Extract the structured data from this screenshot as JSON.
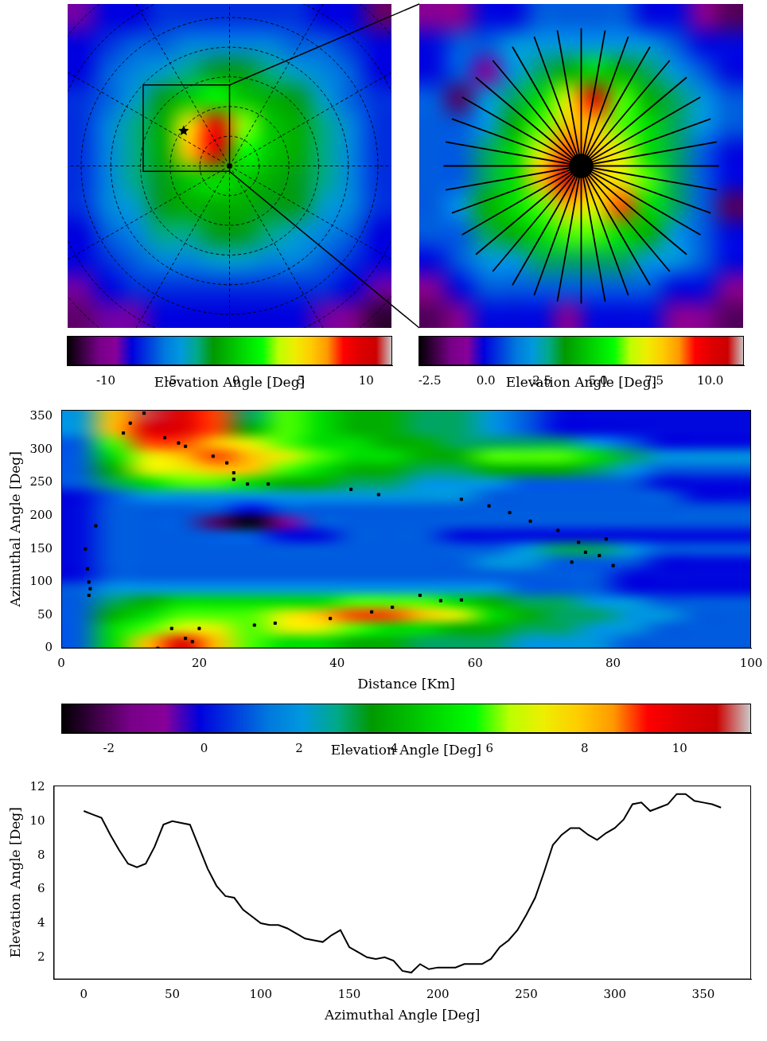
{
  "chart_data": [
    {
      "type": "heatmap",
      "tick_labels": false,
      "cells": [
        [
          -9,
          -8,
          -8,
          -7,
          -7,
          -7,
          -7,
          -7,
          -7,
          -8,
          -8,
          -11
        ],
        [
          -8,
          -7,
          -6,
          -6,
          -5,
          -5,
          -5,
          -5,
          -6,
          -6,
          -7,
          -8
        ],
        [
          -8,
          -6,
          -5,
          -4,
          -3,
          -2,
          -2,
          -3,
          -4,
          -5,
          -6,
          -8
        ],
        [
          -7,
          -6,
          -4,
          -2,
          0,
          2,
          0,
          -1,
          -2,
          -4,
          -6,
          -7
        ],
        [
          -7,
          -5,
          -3,
          -1,
          5,
          9,
          3,
          0,
          -1,
          -3,
          -5,
          -7
        ],
        [
          -7,
          -5,
          -3,
          -1,
          6,
          10,
          2,
          0,
          -1,
          -3,
          -5,
          -7
        ],
        [
          -7,
          -5,
          -3,
          -2,
          0,
          1,
          0,
          -1,
          -2,
          -3,
          -5,
          -7
        ],
        [
          -7,
          -5,
          -4,
          -2,
          -1,
          -1,
          -1,
          -2,
          -2,
          -4,
          -5,
          -7
        ],
        [
          -8,
          -6,
          -5,
          -3,
          -3,
          -2,
          -2,
          -3,
          -4,
          -5,
          -6,
          -8
        ],
        [
          -8,
          -7,
          -6,
          -5,
          -5,
          -4,
          -4,
          -5,
          -5,
          -6,
          -7,
          -8
        ],
        [
          -9,
          -8,
          -7,
          -7,
          -7,
          -7,
          -7,
          -7,
          -7,
          -7,
          -8,
          -9
        ],
        [
          -11,
          -9,
          -9,
          -8,
          -8,
          -8,
          -8,
          -8,
          -8,
          -9,
          -10,
          -12
        ]
      ],
      "color_range": [
        -13,
        12
      ],
      "color_ticks": [
        -10,
        -5,
        0,
        5,
        10
      ],
      "color_label": "Elevation Angle [Deg]"
    },
    {
      "type": "heatmap",
      "tick_labels": false,
      "cells": [
        [
          -1,
          -1,
          0,
          0,
          1,
          1,
          1,
          1,
          0,
          0,
          -1,
          -2
        ],
        [
          0,
          1,
          1,
          2,
          2,
          2,
          2,
          2,
          2,
          1,
          0,
          0
        ],
        [
          0,
          1,
          -1,
          2,
          3,
          4,
          5,
          4,
          3,
          2,
          1,
          0
        ],
        [
          1,
          -2,
          2,
          3,
          5,
          7,
          10,
          6,
          4,
          3,
          2,
          1
        ],
        [
          1,
          1,
          2,
          4,
          6,
          8,
          8,
          6,
          5,
          3,
          2,
          1
        ],
        [
          1,
          1,
          3,
          5,
          7,
          9,
          8,
          7,
          5,
          3,
          1,
          0
        ],
        [
          1,
          1,
          3,
          5,
          8,
          10,
          8,
          7,
          6,
          3,
          1,
          0
        ],
        [
          1,
          2,
          4,
          5,
          6,
          8,
          7,
          9,
          5,
          3,
          1,
          -2
        ],
        [
          1,
          1,
          3,
          4,
          5,
          6,
          6,
          5,
          4,
          2,
          1,
          0
        ],
        [
          0,
          1,
          2,
          2,
          3,
          3,
          3,
          3,
          2,
          2,
          1,
          0
        ],
        [
          -1,
          0,
          1,
          1,
          1,
          1,
          1,
          1,
          1,
          0,
          0,
          -1
        ],
        [
          -2,
          -1,
          0,
          0,
          0,
          -1,
          0,
          0,
          0,
          -1,
          -1,
          -2
        ]
      ],
      "color_range": [
        -3,
        11.5
      ],
      "color_ticks": [
        -2.5,
        {
          "value": 0,
          "label": "0.0"
        },
        2.5,
        {
          "value": 5,
          "label": "5.0"
        },
        7.5,
        {
          "value": 10,
          "label": "10.0"
        }
      ],
      "color_label": "Elevation Angle [Deg]"
    },
    {
      "type": "heatmap",
      "x_label": "Distance [Km]",
      "y_label": "Azimuthal Angle [Deg]",
      "xlim": [
        0,
        100
      ],
      "xticks": [
        0,
        20,
        40,
        60,
        80,
        100
      ],
      "ylim": [
        0,
        360
      ],
      "yticks": [
        0,
        50,
        100,
        150,
        200,
        250,
        300,
        350
      ],
      "grid": false,
      "cells": [
        [
          1,
          5,
          8,
          10,
          8,
          6,
          5,
          5,
          4,
          4,
          3,
          3,
          3,
          2,
          2,
          2,
          1,
          1,
          1,
          1
        ],
        [
          1,
          5,
          6,
          7,
          7,
          6,
          7,
          7,
          6,
          5,
          5,
          4,
          4,
          3,
          3,
          2,
          2,
          1,
          1,
          1
        ],
        [
          1,
          4,
          5,
          6,
          6,
          6,
          7,
          8,
          9,
          9,
          8,
          7,
          5,
          4,
          3,
          3,
          2,
          2,
          1,
          1
        ],
        [
          1,
          3,
          4,
          5,
          5,
          5,
          5,
          5,
          6,
          6,
          6,
          5,
          4,
          3,
          3,
          2,
          2,
          1,
          1,
          1
        ],
        [
          1,
          2,
          2,
          2,
          2,
          2,
          2,
          2,
          2,
          2,
          2,
          2,
          2,
          1,
          1,
          1,
          0,
          0,
          0,
          0
        ],
        [
          0,
          1,
          1,
          1,
          1,
          1,
          1,
          1,
          1,
          1,
          1,
          1,
          1,
          1,
          1,
          1,
          0,
          0,
          0,
          0
        ],
        [
          0,
          1,
          1,
          1,
          1,
          1,
          1,
          1,
          1,
          1,
          1,
          1,
          2,
          2,
          1,
          1,
          1,
          0,
          0,
          0
        ],
        [
          0,
          1,
          1,
          1,
          1,
          1,
          1,
          1,
          1,
          1,
          1,
          1,
          1,
          2,
          3,
          3,
          2,
          1,
          1,
          1
        ],
        [
          0,
          1,
          1,
          1,
          1,
          1,
          0,
          0,
          1,
          1,
          1,
          0,
          0,
          0,
          0,
          0,
          0,
          0,
          0,
          0
        ],
        [
          0,
          1,
          1,
          1,
          -2,
          -3,
          -1,
          1,
          1,
          1,
          1,
          1,
          1,
          1,
          1,
          1,
          1,
          1,
          1,
          1
        ],
        [
          0,
          1,
          1,
          1,
          1,
          0,
          1,
          1,
          1,
          1,
          1,
          1,
          1,
          1,
          1,
          1,
          1,
          1,
          1,
          1
        ],
        [
          0,
          1,
          2,
          2,
          2,
          2,
          2,
          2,
          2,
          2,
          2,
          2,
          1,
          1,
          1,
          1,
          1,
          1,
          0,
          0
        ],
        [
          1,
          3,
          5,
          6,
          6,
          5,
          4,
          4,
          3,
          3,
          2,
          2,
          2,
          1,
          1,
          1,
          1,
          0,
          0,
          0
        ],
        [
          1,
          4,
          7,
          7,
          8,
          8,
          6,
          5,
          4,
          4,
          3,
          3,
          4,
          4,
          4,
          3,
          2,
          1,
          1,
          1
        ],
        [
          1,
          5,
          7,
          8,
          9,
          8,
          7,
          6,
          5,
          5,
          4,
          4,
          6,
          6,
          6,
          5,
          3,
          2,
          2,
          2
        ],
        [
          1,
          6,
          9,
          9,
          8,
          7,
          6,
          5,
          5,
          4,
          4,
          3,
          3,
          3,
          3,
          2,
          1,
          0,
          0,
          0
        ],
        [
          2,
          8,
          10,
          10,
          9,
          4,
          6,
          5,
          4,
          4,
          3,
          3,
          2,
          1,
          0,
          0,
          0,
          0,
          0,
          0
        ],
        [
          2,
          8,
          11,
          10,
          9,
          3,
          6,
          5,
          4,
          4,
          3,
          3,
          2,
          1,
          0,
          0,
          0,
          0,
          0,
          0
        ]
      ],
      "color_range": [
        -3,
        11.5
      ],
      "color_ticks": [
        -2,
        0,
        2,
        4,
        6,
        8,
        10
      ],
      "color_label": "Elevation Angle [Deg]",
      "series": [
        {
          "type": "scatter",
          "marker": "square",
          "color": "#000000",
          "x": [
            3.5,
            3.8,
            4,
            4.2,
            4,
            5,
            9,
            10,
            12,
            15,
            17,
            18,
            22,
            24,
            25,
            25,
            27,
            30,
            16,
            18,
            19,
            20,
            14,
            28,
            31,
            39,
            45,
            48,
            52,
            55,
            58,
            42,
            46,
            58,
            62,
            65,
            68,
            72,
            75,
            78,
            80,
            74,
            76,
            79
          ],
          "values": [
            150,
            120,
            100,
            90,
            80,
            185,
            325,
            340,
            355,
            318,
            310,
            305,
            290,
            280,
            265,
            255,
            248,
            248,
            30,
            15,
            10,
            30,
            0,
            35,
            38,
            45,
            55,
            62,
            80,
            72,
            73,
            240,
            232,
            225,
            215,
            205,
            192,
            178,
            160,
            140,
            125,
            130,
            145,
            165
          ]
        }
      ]
    },
    {
      "type": "line",
      "x_label": "Azimuthal Angle [Deg]",
      "y_label": "Elevation Angle [Deg]",
      "xlim": [
        -17,
        377
      ],
      "xticks": [
        0,
        50,
        100,
        150,
        200,
        250,
        300,
        350
      ],
      "ylim": [
        0.7,
        12.1
      ],
      "yticks": [
        2,
        4,
        6,
        8,
        10,
        12
      ],
      "grid": false,
      "color": "#000000",
      "x": [
        0,
        5,
        10,
        15,
        20,
        25,
        30,
        35,
        40,
        45,
        50,
        55,
        60,
        65,
        70,
        75,
        80,
        85,
        90,
        95,
        100,
        105,
        110,
        115,
        120,
        125,
        130,
        135,
        140,
        145,
        150,
        155,
        160,
        165,
        170,
        175,
        180,
        185,
        190,
        195,
        200,
        205,
        210,
        215,
        220,
        225,
        230,
        235,
        240,
        245,
        250,
        255,
        260,
        265,
        270,
        275,
        280,
        285,
        290,
        295,
        300,
        305,
        310,
        315,
        320,
        325,
        330,
        335,
        340,
        345,
        350,
        355,
        360
      ],
      "values": [
        10.6,
        10.4,
        10.2,
        9.2,
        8.3,
        7.5,
        7.3,
        7.5,
        8.5,
        9.8,
        10.0,
        9.9,
        9.8,
        8.5,
        7.2,
        6.2,
        5.6,
        5.5,
        4.8,
        4.4,
        4.0,
        3.9,
        3.9,
        3.7,
        3.4,
        3.1,
        3.0,
        2.9,
        3.3,
        3.6,
        2.6,
        2.3,
        2.0,
        1.9,
        2.0,
        1.8,
        1.2,
        1.1,
        1.6,
        1.3,
        1.4,
        1.4,
        1.4,
        1.6,
        1.6,
        1.6,
        1.9,
        2.6,
        3.0,
        3.6,
        4.5,
        5.5,
        7.0,
        8.6,
        9.2,
        9.6,
        9.6,
        9.2,
        8.9,
        9.3,
        9.6,
        10.1,
        11.0,
        11.1,
        10.6,
        10.8,
        11.0,
        11.6,
        11.6,
        11.2,
        11.1,
        11.0,
        10.8
      ]
    }
  ]
}
